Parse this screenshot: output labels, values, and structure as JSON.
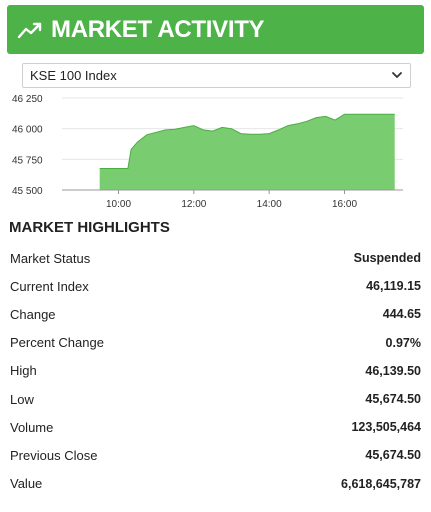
{
  "header": {
    "title": "MARKET ACTIVITY",
    "icon": "trending-up-icon"
  },
  "index_select": {
    "selected": "KSE 100 Index"
  },
  "colors": {
    "accent": "#4db348",
    "chart_fill": "#79cc6f",
    "chart_line": "#4aad44"
  },
  "chart_data": {
    "type": "area",
    "title": "",
    "xlabel": "",
    "ylabel": "",
    "x_ticks": [
      "10:00",
      "12:00",
      "14:00",
      "16:00"
    ],
    "y_ticks": [
      "46 250",
      "46 000",
      "45 750",
      "45 500"
    ],
    "ylim": [
      45500,
      46250
    ],
    "xlim": [
      "08:30",
      "17:30"
    ],
    "grid": true,
    "series": [
      {
        "x": [
          "09:30",
          "09:45",
          "10:00",
          "10:15",
          "10:20",
          "10:30",
          "10:45",
          "11:00",
          "11:15",
          "11:30",
          "11:45",
          "12:00",
          "12:15",
          "12:30",
          "12:45",
          "13:00",
          "13:15",
          "13:30",
          "13:45",
          "14:00",
          "14:15",
          "14:30",
          "14:45",
          "15:00",
          "15:15",
          "15:30",
          "15:45",
          "16:00",
          "16:15",
          "16:30",
          "16:45",
          "17:00",
          "17:20"
        ],
        "y": [
          45675,
          45675,
          45675,
          45675,
          45830,
          45890,
          45950,
          45970,
          45990,
          45995,
          46010,
          46025,
          45990,
          45980,
          46010,
          46000,
          45960,
          45955,
          45955,
          45960,
          45990,
          46025,
          46040,
          46060,
          46090,
          46100,
          46070,
          46118,
          46118,
          46118,
          46118,
          46118,
          46118
        ]
      }
    ]
  },
  "highlights": {
    "title": "MARKET HIGHLIGHTS",
    "rows": [
      {
        "label": "Market Status",
        "value": "Suspended"
      },
      {
        "label": "Current Index",
        "value": "46,119.15"
      },
      {
        "label": "Change",
        "value": "444.65"
      },
      {
        "label": "Percent Change",
        "value": "0.97%"
      },
      {
        "label": "High",
        "value": "46,139.50"
      },
      {
        "label": "Low",
        "value": "45,674.50"
      },
      {
        "label": "Volume",
        "value": "123,505,464"
      },
      {
        "label": "Previous Close",
        "value": "45,674.50"
      },
      {
        "label": "Value",
        "value": "6,618,645,787"
      }
    ]
  }
}
